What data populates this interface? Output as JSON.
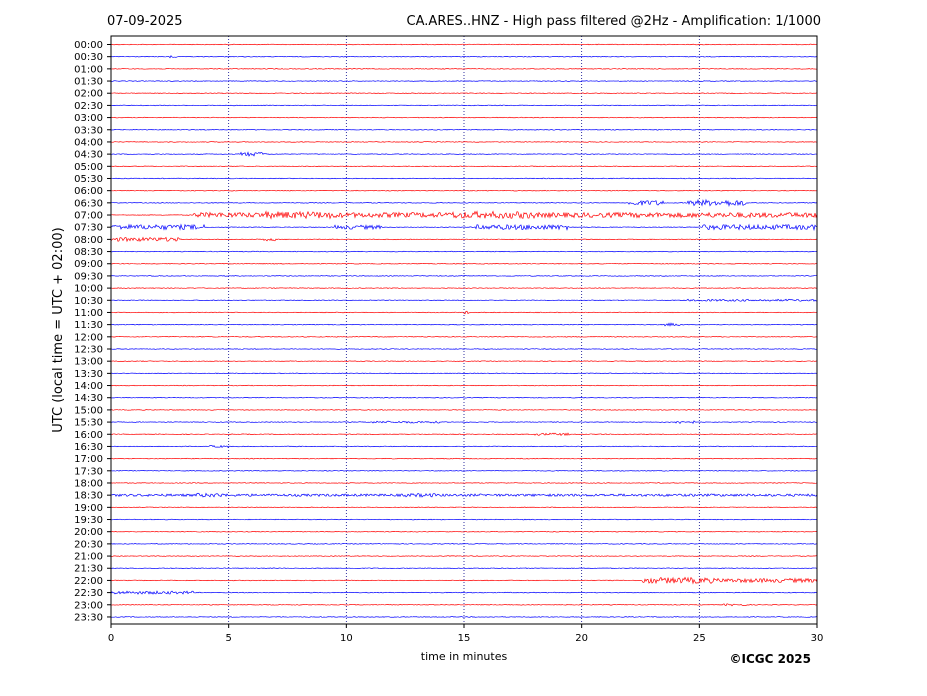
{
  "header": {
    "date": "07-09-2025",
    "title": "CA.ARES..HNZ - High pass filtered @2Hz - Amplification: 1/1000"
  },
  "copyright": "©ICGC 2025",
  "colors": {
    "odd": "#ff0000",
    "even": "#0000ff",
    "grid": "#00008b"
  },
  "chart_data": {
    "type": "line",
    "title": "CA.ARES..HNZ - High pass filtered @2Hz - Amplification: 1/1000",
    "xlabel": "time in minutes",
    "ylabel": "UTC (local time = UTC + 02:00)",
    "xlim": [
      0,
      30
    ],
    "x_ticks": [
      "0",
      "5",
      "10",
      "15",
      "20",
      "25",
      "30"
    ],
    "grid": "vertical dotted",
    "rows": [
      "00:00",
      "00:30",
      "01:00",
      "01:30",
      "02:00",
      "02:30",
      "03:00",
      "03:30",
      "04:00",
      "04:30",
      "05:00",
      "05:30",
      "06:00",
      "06:30",
      "07:00",
      "07:30",
      "08:00",
      "08:30",
      "09:00",
      "09:30",
      "10:00",
      "10:30",
      "11:00",
      "11:30",
      "12:00",
      "12:30",
      "13:00",
      "13:30",
      "14:00",
      "14:30",
      "15:00",
      "15:30",
      "16:00",
      "16:30",
      "17:00",
      "17:30",
      "18:00",
      "18:30",
      "19:00",
      "19:30",
      "20:00",
      "20:30",
      "21:00",
      "21:30",
      "22:00",
      "22:30",
      "23:00",
      "23:30"
    ],
    "bursts": [
      {
        "row": 1,
        "start": 2.5,
        "end": 2.8,
        "amp": 1.5
      },
      {
        "row": 9,
        "start": 5.5,
        "end": 6.6,
        "amp": 2
      },
      {
        "row": 13,
        "start": 22.0,
        "end": 23.5,
        "amp": 2.5
      },
      {
        "row": 13,
        "start": 24.5,
        "end": 27.0,
        "amp": 3
      },
      {
        "row": 14,
        "start": 3.5,
        "end": 30.0,
        "amp": 2.5
      },
      {
        "row": 14,
        "start": 6.5,
        "end": 9.5,
        "amp": 3.5
      },
      {
        "row": 14,
        "start": 14.5,
        "end": 18.0,
        "amp": 3.5
      },
      {
        "row": 15,
        "start": 0.0,
        "end": 4.0,
        "amp": 2.5
      },
      {
        "row": 15,
        "start": 9.5,
        "end": 11.5,
        "amp": 2
      },
      {
        "row": 15,
        "start": 15.5,
        "end": 19.5,
        "amp": 2.5
      },
      {
        "row": 15,
        "start": 25.0,
        "end": 30.0,
        "amp": 2.5
      },
      {
        "row": 16,
        "start": 0.0,
        "end": 3.0,
        "amp": 2
      },
      {
        "row": 16,
        "start": 6.5,
        "end": 7.0,
        "amp": 1.5
      },
      {
        "row": 21,
        "start": 24.5,
        "end": 30.0,
        "amp": 1
      },
      {
        "row": 22,
        "start": 15.0,
        "end": 15.2,
        "amp": 1.5
      },
      {
        "row": 23,
        "start": 23.5,
        "end": 24.2,
        "amp": 1.5
      },
      {
        "row": 31,
        "start": 11.0,
        "end": 14.0,
        "amp": 1
      },
      {
        "row": 31,
        "start": 24.0,
        "end": 24.8,
        "amp": 1.5
      },
      {
        "row": 32,
        "start": 18.0,
        "end": 19.5,
        "amp": 1.2
      },
      {
        "row": 33,
        "start": 4.2,
        "end": 5.0,
        "amp": 1
      },
      {
        "row": 37,
        "start": 0.0,
        "end": 30.0,
        "amp": 1.2
      },
      {
        "row": 37,
        "start": 3.5,
        "end": 4.8,
        "amp": 2
      },
      {
        "row": 37,
        "start": 12.5,
        "end": 13.8,
        "amp": 1.8
      },
      {
        "row": 44,
        "start": 22.5,
        "end": 25.5,
        "amp": 3
      },
      {
        "row": 44,
        "start": 25.5,
        "end": 30.0,
        "amp": 2
      },
      {
        "row": 45,
        "start": 0.0,
        "end": 3.5,
        "amp": 1.5
      },
      {
        "row": 46,
        "start": 26.0,
        "end": 27.0,
        "amp": 1
      }
    ]
  }
}
